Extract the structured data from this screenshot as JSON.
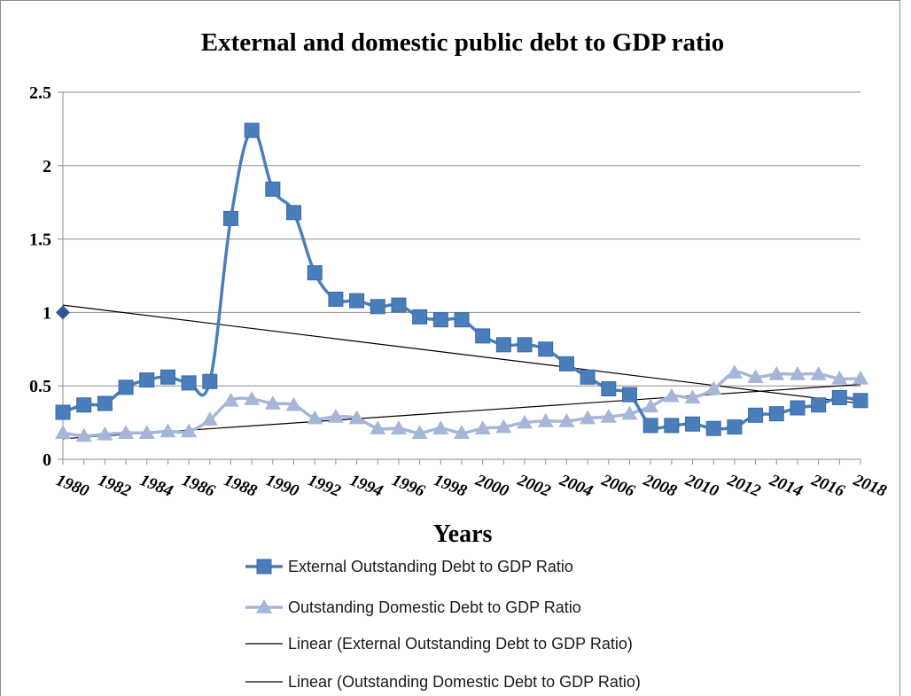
{
  "chart_data": {
    "type": "line",
    "title": "External and domestic public debt to GDP ratio",
    "xlabel": "Years",
    "ylabel": "",
    "x": [
      1980,
      1981,
      1982,
      1983,
      1984,
      1985,
      1986,
      1987,
      1988,
      1989,
      1990,
      1991,
      1992,
      1993,
      1994,
      1995,
      1996,
      1997,
      1998,
      1999,
      2000,
      2001,
      2002,
      2003,
      2004,
      2005,
      2006,
      2007,
      2008,
      2009,
      2010,
      2011,
      2012,
      2013,
      2014,
      2015,
      2016,
      2017,
      2018
    ],
    "x_ticks": [
      "1980",
      "1982",
      "1984",
      "1986",
      "1988",
      "1990",
      "1992",
      "1994",
      "1996",
      "1998",
      "2000",
      "2002",
      "2004",
      "2006",
      "2008",
      "2010",
      "2012",
      "2014",
      "2016",
      "2018"
    ],
    "y_ticks": [
      "0",
      "0.5",
      "1",
      "1.5",
      "2",
      "2.5"
    ],
    "ylim": [
      0,
      2.5
    ],
    "grid": true,
    "legend_position": "bottom",
    "series": [
      {
        "name": "External Outstanding Debt to GDP Ratio",
        "marker": "square",
        "color": "#4a7ebb",
        "values": [
          0.32,
          0.37,
          0.38,
          0.49,
          0.54,
          0.56,
          0.52,
          0.53,
          1.64,
          2.24,
          1.84,
          1.68,
          1.27,
          1.09,
          1.08,
          1.04,
          1.05,
          0.97,
          0.95,
          0.95,
          0.84,
          0.78,
          0.78,
          0.75,
          0.65,
          0.56,
          0.48,
          0.44,
          0.23,
          0.23,
          0.24,
          0.21,
          0.22,
          0.3,
          0.31,
          0.35,
          0.37,
          0.42,
          0.4
        ]
      },
      {
        "name": "Outstanding Domestic Debt to GDP Ratio",
        "marker": "triangle",
        "color": "#a6b6d8",
        "values": [
          0.18,
          0.16,
          0.17,
          0.18,
          0.18,
          0.19,
          0.19,
          0.27,
          0.4,
          0.41,
          0.38,
          0.37,
          0.28,
          0.29,
          0.28,
          0.21,
          0.21,
          0.18,
          0.21,
          0.18,
          0.21,
          0.22,
          0.25,
          0.26,
          0.26,
          0.28,
          0.29,
          0.31,
          0.36,
          0.43,
          0.42,
          0.48,
          0.59,
          0.56,
          0.58,
          0.58,
          0.58,
          0.55,
          0.55
        ]
      },
      {
        "name": "Linear (External Outstanding Debt to GDP Ratio)",
        "type": "trendline",
        "color": "#000000",
        "start": [
          1980,
          1.05
        ],
        "end": [
          2018,
          0.38
        ]
      },
      {
        "name": "Linear (Outstanding Domestic Debt to GDP Ratio)",
        "type": "trendline",
        "color": "#000000",
        "start": [
          1980,
          0.14
        ],
        "end": [
          2018,
          0.51
        ]
      }
    ],
    "annotations": [
      {
        "marker": "diamond",
        "color": "#2f5597",
        "x": 1980,
        "y": 1.0
      }
    ]
  }
}
